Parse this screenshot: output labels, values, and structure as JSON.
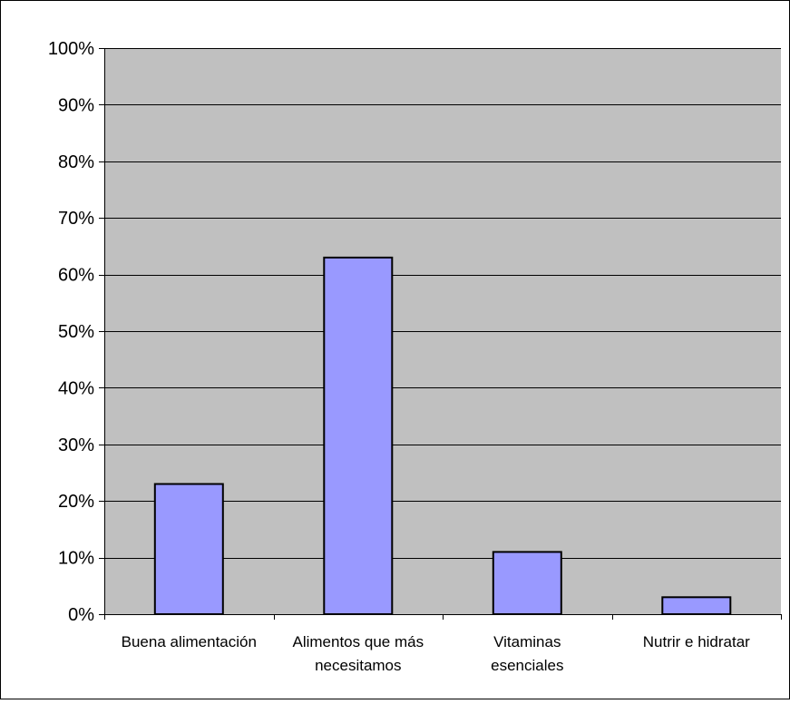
{
  "colors": {
    "plot_background": "#c0c0c0",
    "bar_fill": "#9999ff",
    "bar_stroke": "#000000",
    "gridline": "#000000",
    "border": "#000000"
  },
  "chart_data": {
    "type": "bar",
    "title": "",
    "xlabel": "",
    "ylabel": "",
    "categories": [
      [
        "Buena alimentación"
      ],
      [
        "Alimentos que más",
        "necesitamos"
      ],
      [
        "Vitaminas",
        "esenciales"
      ],
      [
        "Nutrir e  hidratar"
      ]
    ],
    "values": [
      23,
      63,
      11,
      3
    ],
    "ylim": [
      0,
      100
    ],
    "y_ticks": [
      0,
      10,
      20,
      30,
      40,
      50,
      60,
      70,
      80,
      90,
      100
    ],
    "y_tick_labels": [
      "0%",
      "10%",
      "20%",
      "30%",
      "40%",
      "50%",
      "60%",
      "70%",
      "80%",
      "90%",
      "100%"
    ],
    "grid": true,
    "legend": false
  }
}
